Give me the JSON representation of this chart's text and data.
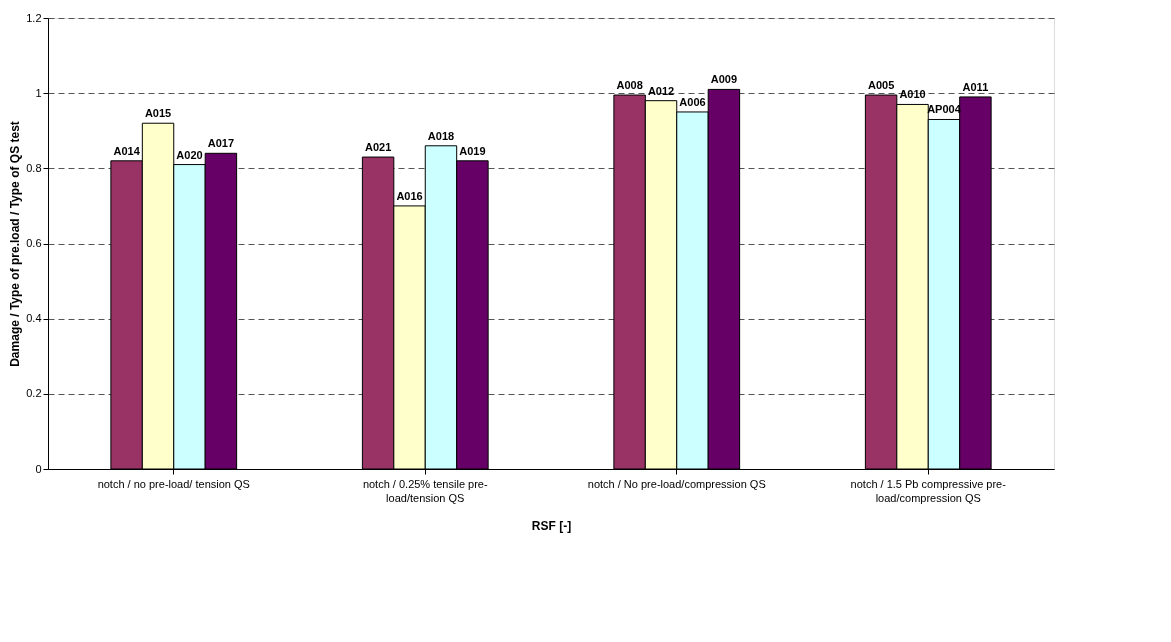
{
  "chart_data": {
    "type": "bar",
    "xlabel": "RSF [-]",
    "ylabel": "Damage / Type of pre.load / Type of QS test",
    "categories": [
      "notch / no pre-load/ tension QS",
      "notch / 0.25% tensile pre-load/tension QS",
      "notch / No pre-load/compression QS",
      "notch / 1.5 Pb compressive pre-load/compression QS"
    ],
    "series": [
      {
        "color": "#993366",
        "values": [
          0.82,
          0.83,
          0.995,
          0.995
        ],
        "value_labels": [
          "A014",
          "A021",
          "A008",
          "A005"
        ]
      },
      {
        "color": "#ffffcc",
        "values": [
          0.92,
          0.7,
          0.98,
          0.97
        ],
        "value_labels": [
          "A015",
          "A016",
          "A012",
          "A010"
        ]
      },
      {
        "color": "#ccffff",
        "values": [
          0.81,
          0.86,
          0.95,
          0.93
        ],
        "value_labels": [
          "A020",
          "A018",
          "A006",
          "AP004"
        ]
      },
      {
        "color": "#660066",
        "values": [
          0.84,
          0.82,
          1.01,
          0.99
        ],
        "value_labels": [
          "A017",
          "A019",
          "A009",
          "A011"
        ]
      }
    ],
    "ylim": [
      0,
      1.2
    ],
    "yticks": [
      0,
      0.2,
      0.4,
      0.6,
      0.8,
      1,
      1.2
    ],
    "grid": "y",
    "legend": false
  }
}
